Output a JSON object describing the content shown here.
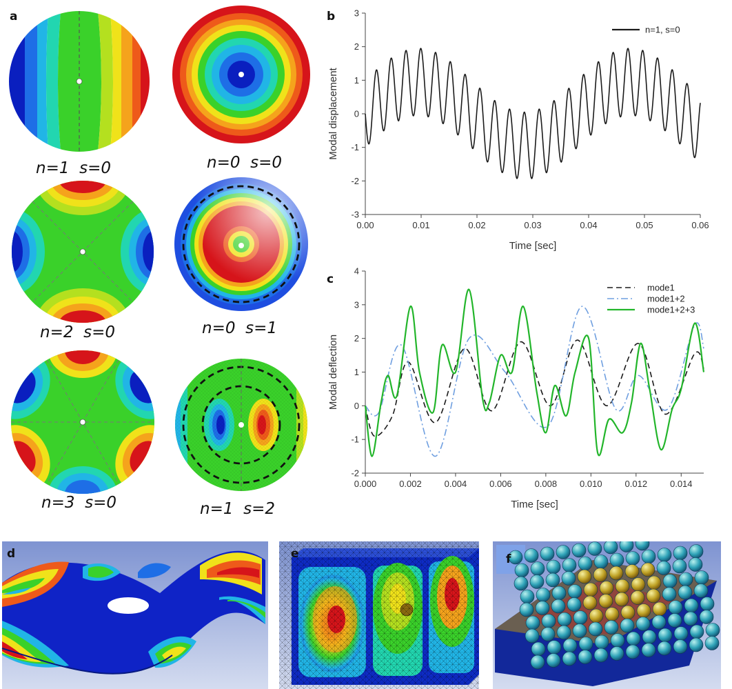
{
  "panels": {
    "a": {
      "letter": "a",
      "modes": [
        {
          "label": "n=1  s=0"
        },
        {
          "label": "n=0  s=0"
        },
        {
          "label": "n=2  s=0"
        },
        {
          "label": "n=0  s=1"
        },
        {
          "label": "n=3  s=0"
        },
        {
          "label": "n=1  s=2"
        }
      ]
    },
    "d": {
      "letter": "d"
    },
    "e": {
      "letter": "e"
    },
    "f": {
      "letter": "f"
    }
  },
  "colors": {
    "contour": [
      "#0a1fbf",
      "#1e6ee6",
      "#21b5e6",
      "#22d6b0",
      "#3ad12a",
      "#b4e01f",
      "#f0e21a",
      "#f5a31c",
      "#ee5a1a",
      "#d6141a"
    ],
    "black_series": "#1a1a1a",
    "blue_series": "#6f9fe0",
    "green_series": "#22b52a",
    "render_bg_top": "#7e93d1",
    "render_bg_bottom": "#d4dcf0"
  },
  "chart_data": [
    {
      "panel": "b",
      "type": "line",
      "xlabel": "Time [sec]",
      "ylabel": "Modal displacement",
      "xlim": [
        0,
        0.06
      ],
      "ylim": [
        -3,
        3
      ],
      "xticks": [
        "0.00",
        "0.01",
        "0.02",
        "0.03",
        "0.04",
        "0.05",
        "0.06"
      ],
      "yticks": [
        "3",
        "2",
        "1",
        "0",
        "-1",
        "-2",
        "-3"
      ],
      "legend_position": "top-right",
      "series": [
        {
          "name": "n=1, s=0",
          "style": "solid",
          "color": "#1a1a1a",
          "model": {
            "slow_amplitude": 0.95,
            "slow_period": 0.038,
            "fast_amplitude": 1.0,
            "fast_period": 0.00265
          },
          "x": [
            0,
            0.005,
            0.01,
            0.015,
            0.02,
            0.025,
            0.03,
            0.035,
            0.04,
            0.045,
            0.05,
            0.055,
            0.06
          ],
          "envelope_max": [
            0.3,
            1.7,
            1.95,
            1.8,
            1.0,
            0.1,
            -0.2,
            0.3,
            1.3,
            1.95,
            1.8,
            1.2,
            0.0
          ],
          "envelope_min": [
            -0.9,
            -0.2,
            -0.1,
            -0.3,
            -1.2,
            -1.8,
            -1.95,
            -1.7,
            -0.7,
            -0.1,
            -0.3,
            -1.0,
            -1.7
          ]
        }
      ]
    },
    {
      "panel": "c",
      "type": "line",
      "xlabel": "Time [sec]",
      "ylabel": "Modal deflection",
      "xlim": [
        0,
        0.015
      ],
      "ylim": [
        -2,
        4
      ],
      "xticks": [
        "0.000",
        "0.002",
        "0.004",
        "0.006",
        "0.008",
        "0.010",
        "0.012",
        "0.014"
      ],
      "yticks": [
        "4",
        "3",
        "2",
        "1",
        "0",
        "-1",
        "-2"
      ],
      "legend_position": "top-right",
      "series": [
        {
          "name": "mode1",
          "style": "dashed",
          "color": "#1a1a1a",
          "x": [
            0,
            0.0004,
            0.0012,
            0.0019,
            0.0031,
            0.0044,
            0.0056,
            0.0069,
            0.0082,
            0.0094,
            0.0107,
            0.0121,
            0.0133,
            0.0146,
            0.015
          ],
          "y": [
            0.0,
            -0.9,
            -0.3,
            1.3,
            -0.5,
            1.7,
            -0.15,
            1.9,
            0.0,
            1.95,
            0.0,
            1.85,
            -0.25,
            1.55,
            1.1
          ]
        },
        {
          "name": "mode1+2",
          "style": "dashdot",
          "color": "#6f9fe0",
          "x": [
            0,
            0.0006,
            0.0016,
            0.0031,
            0.0046,
            0.0062,
            0.0081,
            0.0096,
            0.0111,
            0.0121,
            0.0134,
            0.0146,
            0.015
          ],
          "y": [
            0.0,
            -0.2,
            1.8,
            -1.5,
            2.0,
            1.0,
            -0.6,
            2.95,
            -0.1,
            0.9,
            -0.1,
            2.4,
            1.7
          ]
        },
        {
          "name": "mode1+2+3",
          "style": "solid",
          "color": "#22b52a",
          "x": [
            0,
            0.0003,
            0.0007,
            0.001,
            0.0014,
            0.002,
            0.0024,
            0.003,
            0.0034,
            0.004,
            0.0046,
            0.0052,
            0.0055,
            0.006,
            0.0065,
            0.007,
            0.0076,
            0.008,
            0.0084,
            0.0089,
            0.0093,
            0.0099,
            0.0103,
            0.0108,
            0.0114,
            0.0118,
            0.0122,
            0.0126,
            0.0131,
            0.0136,
            0.014,
            0.0146,
            0.015
          ],
          "y": [
            0.0,
            -1.5,
            0.1,
            0.9,
            0.3,
            2.95,
            1.0,
            -0.2,
            1.8,
            1.0,
            3.45,
            0.2,
            0.1,
            1.5,
            1.0,
            2.95,
            0.4,
            -0.8,
            0.6,
            -0.3,
            1.0,
            2.0,
            -1.4,
            -0.4,
            -0.8,
            0.1,
            1.85,
            0.5,
            -1.3,
            -0.1,
            0.5,
            2.45,
            1.0
          ]
        }
      ]
    }
  ]
}
